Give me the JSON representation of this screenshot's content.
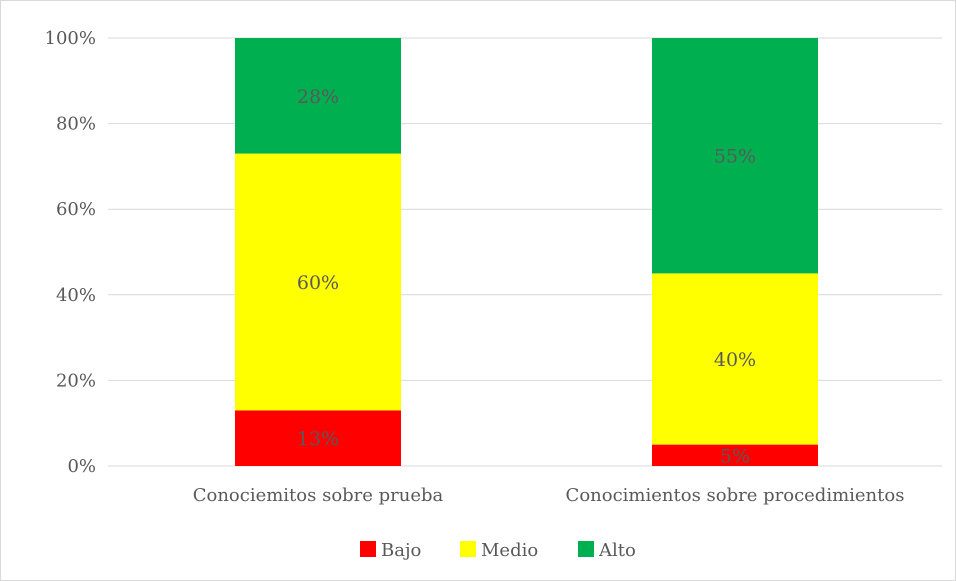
{
  "chart_data": {
    "type": "bar",
    "stacked": true,
    "categories": [
      "Conociemitos sobre prueba",
      "Conocimientos sobre procedimientos"
    ],
    "series": [
      {
        "name": "Bajo",
        "values": [
          13,
          5
        ],
        "labels": [
          "13%",
          "5%"
        ],
        "color": "#ff0000"
      },
      {
        "name": "Medio",
        "values": [
          60,
          40
        ],
        "labels": [
          "60%",
          "40%"
        ],
        "color": "#ffff00"
      },
      {
        "name": "Alto",
        "values": [
          28,
          55
        ],
        "labels": [
          "28%",
          "55%"
        ],
        "color": "#00b050"
      }
    ],
    "ylim": [
      0,
      100
    ],
    "y_ticks": [
      "0%",
      "20%",
      "40%",
      "60%",
      "80%",
      "100%"
    ],
    "grid": true,
    "legend_position": "bottom",
    "title": "",
    "xlabel": "",
    "ylabel": ""
  }
}
